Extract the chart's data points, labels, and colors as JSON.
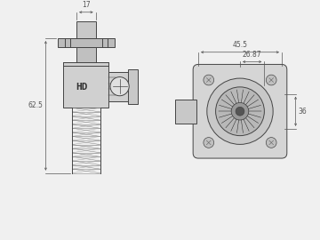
{
  "bg_color": "#f0f0f0",
  "line_color": "#444444",
  "dim_color": "#555555",
  "lw": 0.7,
  "dim_lw": 0.5,
  "dim_fontsize": 5.5,
  "dims": {
    "width_top": "17",
    "height_left": "62.5",
    "width_right_outer": "45.5",
    "width_right_inner": "26.87",
    "height_right": "36"
  }
}
